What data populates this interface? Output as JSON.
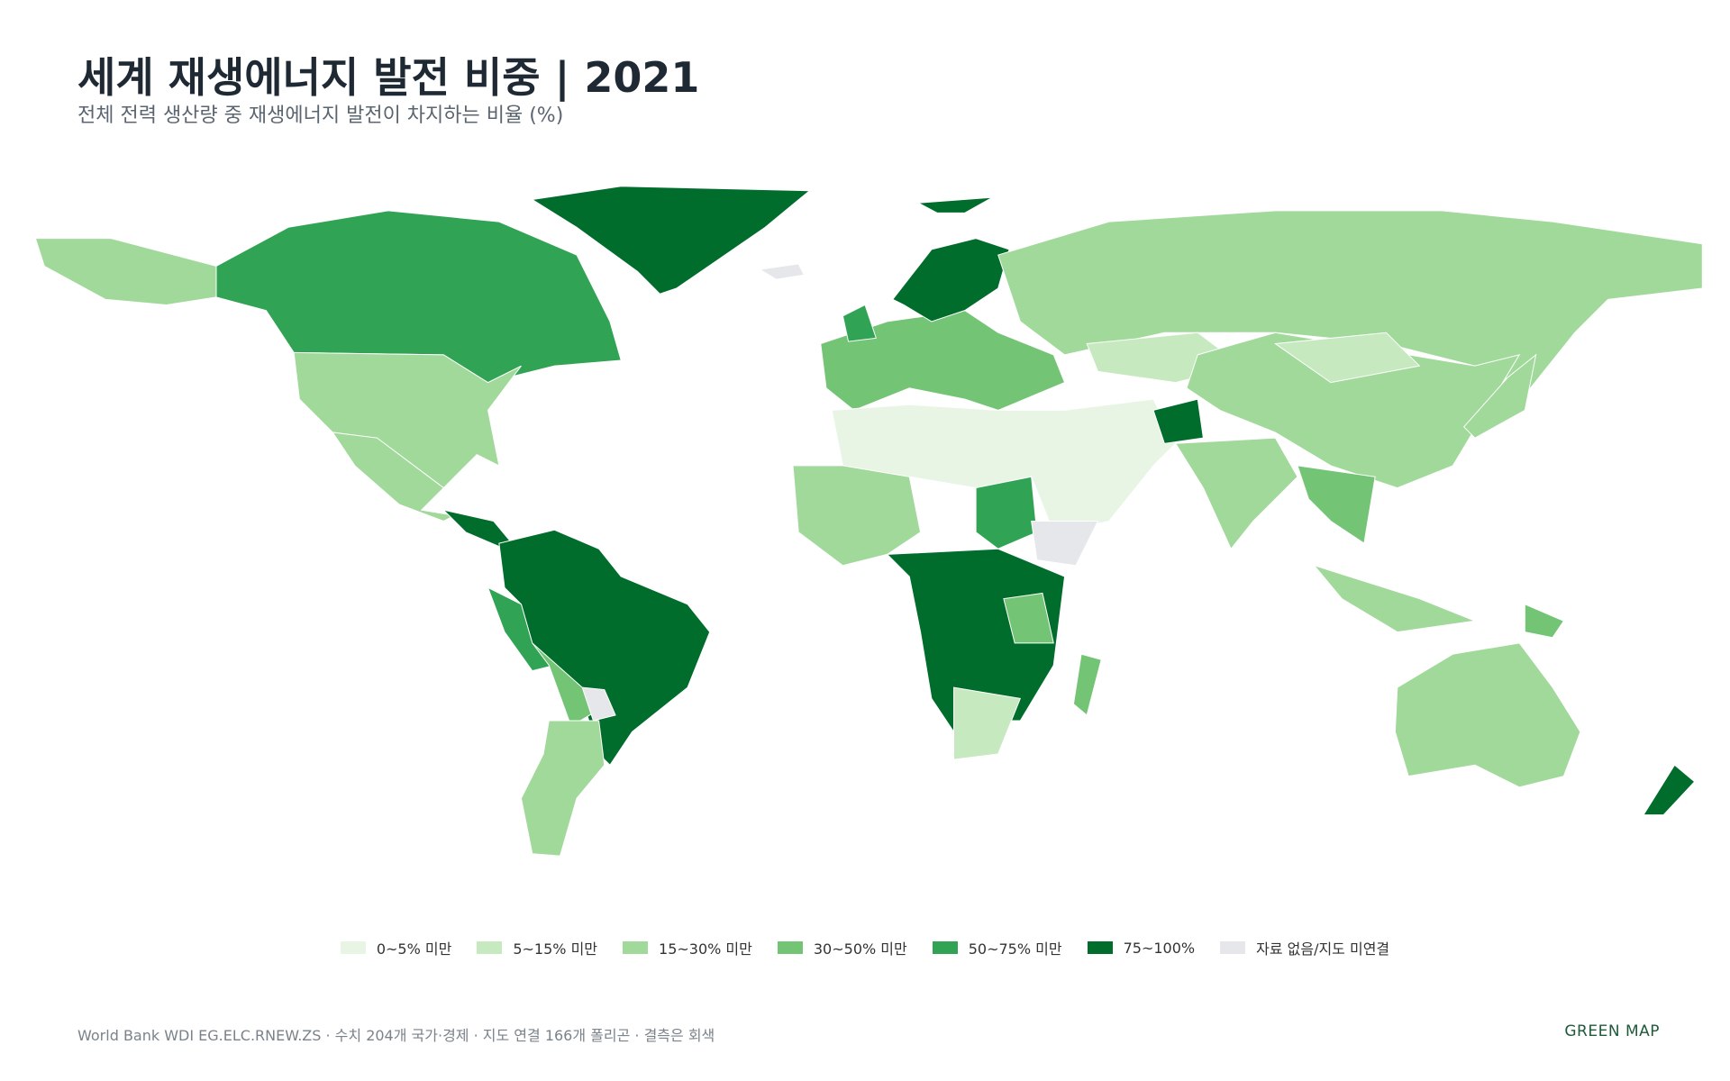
{
  "header": {
    "title": "세계 재생에너지 발전 비중 | 2021",
    "subtitle": "전체 전력 생산량 중 재생에너지 발전이 차지하는 비율 (%)"
  },
  "legend": {
    "items": [
      {
        "label": "0~5% 미만",
        "color": "#e8f5e4"
      },
      {
        "label": "5~15% 미만",
        "color": "#c7e9c0"
      },
      {
        "label": "15~30% 미만",
        "color": "#a1d99b"
      },
      {
        "label": "30~50% 미만",
        "color": "#74c476"
      },
      {
        "label": "50~75% 미만",
        "color": "#31a354"
      },
      {
        "label": "75~100%",
        "color": "#006d2c"
      },
      {
        "label": "자료 없음/지도 미연결",
        "color": "#e5e7eb"
      }
    ]
  },
  "footer": {
    "source": "World Bank WDI EG.ELC.RNEW.ZS · 수치 204개 국가·경제 · 지도 연결 166개 폴리곤 · 결측은 회색",
    "brand": "GREEN MAP"
  }
}
